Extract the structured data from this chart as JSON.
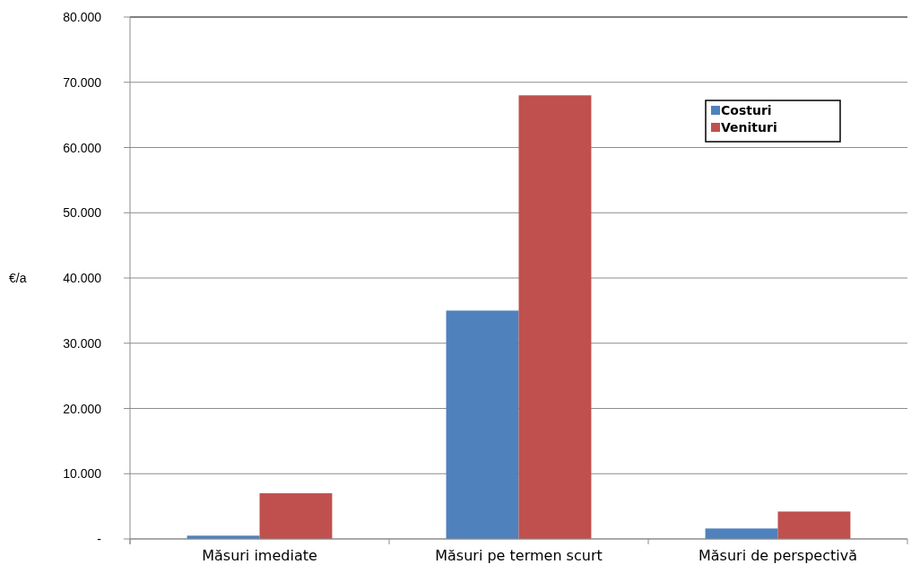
{
  "chart_data": {
    "type": "bar",
    "ylabel": "€/a",
    "categories": [
      "Măsuri imediate",
      "Măsuri pe termen scurt",
      "Măsuri de perspectivă"
    ],
    "series": [
      {
        "name": "Costuri",
        "color": "#4f81bd",
        "values": [
          500,
          35000,
          1600
        ]
      },
      {
        "name": "Venituri",
        "color": "#c0504d",
        "values": [
          7000,
          68000,
          4200
        ]
      }
    ],
    "ylim": [
      0,
      80000
    ],
    "yticks": [
      {
        "value": 0,
        "label": "-"
      },
      {
        "value": 10000,
        "label": "10.000"
      },
      {
        "value": 20000,
        "label": "20.000"
      },
      {
        "value": 30000,
        "label": "30.000"
      },
      {
        "value": 40000,
        "label": "40.000"
      },
      {
        "value": 50000,
        "label": "50.000"
      },
      {
        "value": 60000,
        "label": "60.000"
      },
      {
        "value": 70000,
        "label": "70.000"
      },
      {
        "value": 80000,
        "label": "80.000"
      }
    ],
    "grid": "y",
    "legend": "top right"
  }
}
